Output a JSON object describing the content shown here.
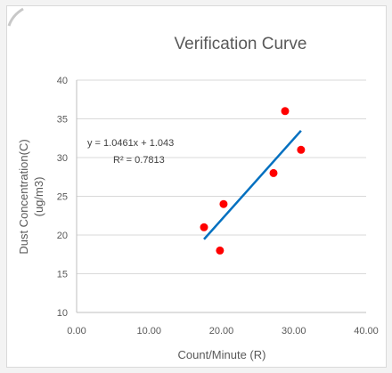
{
  "chart_data": {
    "type": "scatter",
    "title": "Verification Curve",
    "xlabel": "Count/Minute (R)",
    "ylabel_line1": "Dust Concentration(C)",
    "ylabel_line2": "(ug/m3)",
    "xlim": [
      0,
      40
    ],
    "ylim": [
      10,
      40
    ],
    "x_ticks": [
      0,
      10,
      20,
      30,
      40
    ],
    "x_tick_labels": [
      "0.00",
      "10.00",
      "20.00",
      "30.00",
      "40.00"
    ],
    "y_ticks": [
      10,
      15,
      20,
      25,
      30,
      35,
      40
    ],
    "y_tick_labels": [
      "10",
      "15",
      "20",
      "25",
      "30",
      "35",
      "40"
    ],
    "grid": "horizontal",
    "legend": "none",
    "points": [
      {
        "x": 17.6,
        "y": 21
      },
      {
        "x": 19.8,
        "y": 18
      },
      {
        "x": 20.3,
        "y": 24
      },
      {
        "x": 27.2,
        "y": 28
      },
      {
        "x": 28.8,
        "y": 36
      },
      {
        "x": 31.0,
        "y": 31
      }
    ],
    "trendline": {
      "type": "linear",
      "x_range": [
        17.6,
        31.0
      ],
      "equation": "y = 1.0461x + 1.043",
      "r_squared": "R² = 0.7813"
    },
    "colors": {
      "points": "#ff0000",
      "trendline": "#0070c0",
      "gridline": "#d9d9d9",
      "axis": "#bfbfbf",
      "text": "#595959"
    }
  }
}
